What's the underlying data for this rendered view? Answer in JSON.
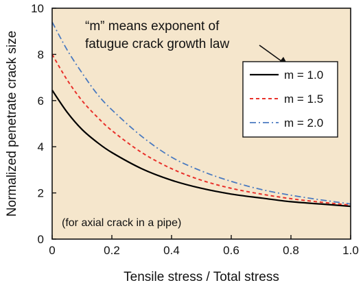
{
  "chart_data": {
    "type": "line",
    "title": "",
    "xlabel": "Tensile stress / Total stress",
    "ylabel": "Normalized penetrate crack size",
    "xlim": [
      0,
      1.0
    ],
    "ylim": [
      0,
      10
    ],
    "xticks": [
      "0",
      "0.2",
      "0.4",
      "0.6",
      "0.8",
      "1.0"
    ],
    "yticks": [
      "0",
      "2",
      "4",
      "6",
      "8",
      "10"
    ],
    "grid": false,
    "background_color": "#f5e6cc",
    "legend_position": "upper-right",
    "annotation_lines": [
      "“m” means exponent of",
      "fatugue crack growth law"
    ],
    "note": "(for axial crack in a pipe)",
    "series": [
      {
        "name": "m = 1.0",
        "style": "solid",
        "color": "#000000",
        "x": [
          0,
          0.05,
          0.1,
          0.15,
          0.2,
          0.3,
          0.4,
          0.5,
          0.6,
          0.7,
          0.8,
          0.9,
          1.0
        ],
        "y": [
          6.45,
          5.5,
          4.75,
          4.2,
          3.75,
          3.05,
          2.55,
          2.2,
          1.95,
          1.78,
          1.62,
          1.52,
          1.42
        ]
      },
      {
        "name": "m = 1.5",
        "style": "dashed",
        "color": "#e8302a",
        "x": [
          0,
          0.05,
          0.1,
          0.15,
          0.2,
          0.3,
          0.4,
          0.5,
          0.6,
          0.7,
          0.8,
          0.9,
          1.0
        ],
        "y": [
          8.0,
          6.9,
          6.0,
          5.3,
          4.7,
          3.75,
          3.05,
          2.55,
          2.2,
          1.95,
          1.75,
          1.6,
          1.47
        ]
      },
      {
        "name": "m = 2.0",
        "style": "dash-dot",
        "color": "#4a7ac0",
        "x": [
          0,
          0.05,
          0.1,
          0.15,
          0.2,
          0.3,
          0.4,
          0.5,
          0.6,
          0.7,
          0.8,
          0.9,
          1.0
        ],
        "y": [
          9.4,
          8.2,
          7.2,
          6.3,
          5.6,
          4.45,
          3.55,
          2.95,
          2.5,
          2.15,
          1.9,
          1.7,
          1.52
        ]
      }
    ]
  }
}
